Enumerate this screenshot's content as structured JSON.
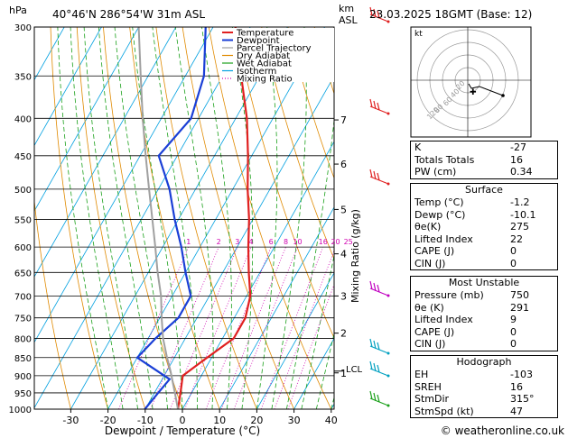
{
  "header": {
    "hpa_label": "hPa",
    "location": "40°46'N  286°54'W  31m  ASL",
    "km_label": "km",
    "asl_label": "ASL",
    "datetime": "23.03.2025  18GMT  (Base: 12)"
  },
  "chart_data": {
    "type": "line",
    "xlabel": "Dewpoint / Temperature (°C)",
    "xlim": [
      -35,
      40
    ],
    "x_ticks": [
      -30,
      -20,
      -10,
      0,
      10,
      20,
      30,
      40
    ],
    "ylim_hpa": [
      1000,
      300
    ],
    "pressure_levels": [
      300,
      350,
      400,
      450,
      500,
      550,
      600,
      650,
      700,
      750,
      800,
      850,
      900,
      950,
      1000
    ],
    "km_ticks": [
      {
        "label": "7",
        "p": 402
      },
      {
        "label": "6",
        "p": 462
      },
      {
        "label": "5",
        "p": 533
      },
      {
        "label": "4",
        "p": 613
      },
      {
        "label": "3",
        "p": 700
      },
      {
        "label": "2",
        "p": 787
      },
      {
        "label": "1",
        "p": 892
      }
    ],
    "lcl_label": "LCL",
    "lcl_p": 887,
    "mixing_ratio_label": "Mixing Ratio (g/kg)",
    "mixing_ratio_values": [
      "1",
      "2",
      "3",
      "4",
      "6",
      "8",
      "10",
      "16",
      "20",
      "25"
    ],
    "legend": [
      "Temperature",
      "Dewpoint",
      "Parcel Trajectory",
      "Dry Adiabat",
      "Wet Adiabat",
      "Isotherm",
      "Mixing Ratio"
    ],
    "series": [
      {
        "name": "Temperature",
        "color": "#e02020",
        "points": [
          [
            1000,
            -1.2
          ],
          [
            950,
            -3
          ],
          [
            900,
            -5
          ],
          [
            860,
            -2
          ],
          [
            800,
            3
          ],
          [
            750,
            3
          ],
          [
            700,
            1
          ],
          [
            650,
            -3
          ],
          [
            600,
            -7
          ],
          [
            550,
            -11
          ],
          [
            500,
            -16
          ],
          [
            450,
            -21
          ],
          [
            400,
            -27
          ],
          [
            350,
            -35
          ],
          [
            300,
            -44
          ]
        ]
      },
      {
        "name": "Dewpoint",
        "color": "#1a3fd6",
        "points": [
          [
            1000,
            -10.1
          ],
          [
            950,
            -9
          ],
          [
            910,
            -8
          ],
          [
            850,
            -20
          ],
          [
            800,
            -18
          ],
          [
            750,
            -15
          ],
          [
            700,
            -15
          ],
          [
            650,
            -20
          ],
          [
            600,
            -25
          ],
          [
            550,
            -31
          ],
          [
            500,
            -37
          ],
          [
            450,
            -45
          ],
          [
            400,
            -42
          ],
          [
            350,
            -45
          ],
          [
            300,
            -52
          ]
        ]
      },
      {
        "name": "Parcel Trajectory",
        "color": "#a0a0a0",
        "points": [
          [
            1000,
            -1.2
          ],
          [
            950,
            -4.5
          ],
          [
            887,
            -9
          ],
          [
            850,
            -12
          ],
          [
            800,
            -16
          ],
          [
            750,
            -19.5
          ],
          [
            700,
            -23
          ],
          [
            650,
            -27.5
          ],
          [
            600,
            -32
          ],
          [
            550,
            -37
          ],
          [
            500,
            -42.5
          ],
          [
            450,
            -48.5
          ],
          [
            400,
            -55
          ],
          [
            350,
            -62
          ],
          [
            300,
            -70
          ]
        ]
      }
    ]
  },
  "hodograph": {
    "label": "kt",
    "rings": [
      "20",
      "40",
      "60",
      "80",
      "120"
    ]
  },
  "indices": [
    {
      "label": "K",
      "value": "-27"
    },
    {
      "label": "Totals Totals",
      "value": "16"
    },
    {
      "label": "PW (cm)",
      "value": "0.34"
    }
  ],
  "surface": {
    "title": "Surface",
    "rows": [
      {
        "label": "Temp (°C)",
        "value": "-1.2"
      },
      {
        "label": "Dewp (°C)",
        "value": "-10.1"
      },
      {
        "label": "θe(K)",
        "value": "275"
      },
      {
        "label": "Lifted Index",
        "value": "22"
      },
      {
        "label": "CAPE (J)",
        "value": "0"
      },
      {
        "label": "CIN (J)",
        "value": "0"
      }
    ]
  },
  "most_unstable": {
    "title": "Most Unstable",
    "rows": [
      {
        "label": "Pressure (mb)",
        "value": "750"
      },
      {
        "label": "θe (K)",
        "value": "291"
      },
      {
        "label": "Lifted Index",
        "value": "9"
      },
      {
        "label": "CAPE (J)",
        "value": "0"
      },
      {
        "label": "CIN (J)",
        "value": "0"
      }
    ]
  },
  "hodograph_table": {
    "title": "Hodograph",
    "rows": [
      {
        "label": "EH",
        "value": "-103"
      },
      {
        "label": "SREH",
        "value": "16"
      },
      {
        "label": "StmDir",
        "value": "315°"
      },
      {
        "label": "StmSpd (kt)",
        "value": "47"
      }
    ]
  },
  "footer": {
    "copyright": "© weatheronline.co.uk"
  },
  "colors": {
    "temperature": "#e02020",
    "dewpoint": "#1a3fd6",
    "parcel": "#a0a0a0",
    "dry_adiabat": "#e08a00",
    "wet_adiabat": "#1aa01a",
    "isotherm": "#00a0e0",
    "mixing_ratio": "#d000b0"
  }
}
